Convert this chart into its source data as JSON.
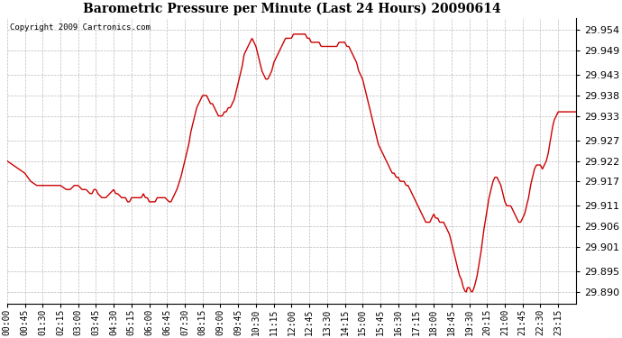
{
  "title": "Barometric Pressure per Minute (Last 24 Hours) 20090614",
  "copyright": "Copyright 2009 Cartronics.com",
  "line_color": "#cc0000",
  "background_color": "#ffffff",
  "grid_color": "#bbbbbb",
  "yticks": [
    29.89,
    29.895,
    29.901,
    29.906,
    29.911,
    29.917,
    29.922,
    29.927,
    29.933,
    29.938,
    29.943,
    29.949,
    29.954
  ],
  "ylim": [
    29.887,
    29.957
  ],
  "xlim": [
    0,
    1440
  ],
  "xtick_labels": [
    "00:00",
    "00:45",
    "01:30",
    "02:15",
    "03:00",
    "03:45",
    "04:30",
    "05:15",
    "06:00",
    "06:45",
    "07:30",
    "08:15",
    "09:00",
    "09:45",
    "10:30",
    "11:15",
    "12:00",
    "12:45",
    "13:30",
    "14:15",
    "15:00",
    "15:45",
    "16:30",
    "17:15",
    "18:00",
    "18:45",
    "19:30",
    "20:15",
    "21:00",
    "21:45",
    "22:30",
    "23:15"
  ],
  "waypoints": [
    [
      0,
      29.922
    ],
    [
      15,
      29.921
    ],
    [
      30,
      29.92
    ],
    [
      45,
      29.919
    ],
    [
      60,
      29.917
    ],
    [
      75,
      29.916
    ],
    [
      90,
      29.916
    ],
    [
      105,
      29.916
    ],
    [
      120,
      29.916
    ],
    [
      135,
      29.916
    ],
    [
      150,
      29.915
    ],
    [
      160,
      29.915
    ],
    [
      170,
      29.916
    ],
    [
      180,
      29.916
    ],
    [
      190,
      29.915
    ],
    [
      200,
      29.915
    ],
    [
      210,
      29.914
    ],
    [
      215,
      29.914
    ],
    [
      220,
      29.915
    ],
    [
      225,
      29.915
    ],
    [
      230,
      29.914
    ],
    [
      240,
      29.913
    ],
    [
      250,
      29.913
    ],
    [
      260,
      29.914
    ],
    [
      270,
      29.915
    ],
    [
      275,
      29.914
    ],
    [
      280,
      29.914
    ],
    [
      290,
      29.913
    ],
    [
      300,
      29.913
    ],
    [
      305,
      29.912
    ],
    [
      310,
      29.912
    ],
    [
      315,
      29.913
    ],
    [
      320,
      29.913
    ],
    [
      330,
      29.913
    ],
    [
      340,
      29.913
    ],
    [
      345,
      29.914
    ],
    [
      350,
      29.913
    ],
    [
      355,
      29.913
    ],
    [
      360,
      29.912
    ],
    [
      370,
      29.912
    ],
    [
      375,
      29.912
    ],
    [
      380,
      29.913
    ],
    [
      385,
      29.913
    ],
    [
      390,
      29.913
    ],
    [
      400,
      29.913
    ],
    [
      410,
      29.912
    ],
    [
      415,
      29.912
    ],
    [
      420,
      29.913
    ],
    [
      430,
      29.915
    ],
    [
      440,
      29.918
    ],
    [
      450,
      29.922
    ],
    [
      460,
      29.926
    ],
    [
      465,
      29.929
    ],
    [
      470,
      29.931
    ],
    [
      475,
      29.933
    ],
    [
      480,
      29.935
    ],
    [
      490,
      29.937
    ],
    [
      495,
      29.938
    ],
    [
      500,
      29.938
    ],
    [
      505,
      29.938
    ],
    [
      510,
      29.937
    ],
    [
      515,
      29.936
    ],
    [
      520,
      29.936
    ],
    [
      525,
      29.935
    ],
    [
      530,
      29.934
    ],
    [
      535,
      29.933
    ],
    [
      540,
      29.933
    ],
    [
      545,
      29.933
    ],
    [
      550,
      29.934
    ],
    [
      555,
      29.934
    ],
    [
      560,
      29.935
    ],
    [
      565,
      29.935
    ],
    [
      570,
      29.936
    ],
    [
      575,
      29.937
    ],
    [
      580,
      29.939
    ],
    [
      585,
      29.941
    ],
    [
      590,
      29.943
    ],
    [
      595,
      29.945
    ],
    [
      600,
      29.948
    ],
    [
      610,
      29.95
    ],
    [
      615,
      29.951
    ],
    [
      620,
      29.952
    ],
    [
      625,
      29.951
    ],
    [
      630,
      29.95
    ],
    [
      635,
      29.948
    ],
    [
      640,
      29.946
    ],
    [
      645,
      29.944
    ],
    [
      650,
      29.943
    ],
    [
      655,
      29.942
    ],
    [
      660,
      29.942
    ],
    [
      665,
      29.943
    ],
    [
      670,
      29.944
    ],
    [
      675,
      29.946
    ],
    [
      680,
      29.947
    ],
    [
      685,
      29.948
    ],
    [
      690,
      29.949
    ],
    [
      695,
      29.95
    ],
    [
      700,
      29.951
    ],
    [
      705,
      29.952
    ],
    [
      710,
      29.952
    ],
    [
      715,
      29.952
    ],
    [
      720,
      29.952
    ],
    [
      725,
      29.953
    ],
    [
      730,
      29.953
    ],
    [
      735,
      29.953
    ],
    [
      740,
      29.953
    ],
    [
      745,
      29.953
    ],
    [
      750,
      29.953
    ],
    [
      755,
      29.953
    ],
    [
      760,
      29.952
    ],
    [
      765,
      29.952
    ],
    [
      770,
      29.951
    ],
    [
      775,
      29.951
    ],
    [
      780,
      29.951
    ],
    [
      785,
      29.951
    ],
    [
      790,
      29.951
    ],
    [
      795,
      29.95
    ],
    [
      800,
      29.95
    ],
    [
      805,
      29.95
    ],
    [
      810,
      29.95
    ],
    [
      815,
      29.95
    ],
    [
      820,
      29.95
    ],
    [
      825,
      29.95
    ],
    [
      830,
      29.95
    ],
    [
      835,
      29.95
    ],
    [
      840,
      29.951
    ],
    [
      845,
      29.951
    ],
    [
      850,
      29.951
    ],
    [
      855,
      29.951
    ],
    [
      860,
      29.95
    ],
    [
      865,
      29.95
    ],
    [
      870,
      29.949
    ],
    [
      875,
      29.948
    ],
    [
      880,
      29.947
    ],
    [
      885,
      29.946
    ],
    [
      890,
      29.944
    ],
    [
      895,
      29.943
    ],
    [
      900,
      29.942
    ],
    [
      905,
      29.94
    ],
    [
      910,
      29.938
    ],
    [
      915,
      29.936
    ],
    [
      920,
      29.934
    ],
    [
      925,
      29.932
    ],
    [
      930,
      29.93
    ],
    [
      935,
      29.928
    ],
    [
      940,
      29.926
    ],
    [
      945,
      29.925
    ],
    [
      950,
      29.924
    ],
    [
      955,
      29.923
    ],
    [
      960,
      29.922
    ],
    [
      965,
      29.921
    ],
    [
      970,
      29.92
    ],
    [
      975,
      29.919
    ],
    [
      980,
      29.919
    ],
    [
      985,
      29.918
    ],
    [
      990,
      29.918
    ],
    [
      995,
      29.917
    ],
    [
      1000,
      29.917
    ],
    [
      1005,
      29.917
    ],
    [
      1010,
      29.916
    ],
    [
      1015,
      29.916
    ],
    [
      1020,
      29.915
    ],
    [
      1025,
      29.914
    ],
    [
      1030,
      29.913
    ],
    [
      1035,
      29.912
    ],
    [
      1040,
      29.911
    ],
    [
      1045,
      29.91
    ],
    [
      1050,
      29.909
    ],
    [
      1055,
      29.908
    ],
    [
      1060,
      29.907
    ],
    [
      1065,
      29.907
    ],
    [
      1070,
      29.907
    ],
    [
      1075,
      29.908
    ],
    [
      1080,
      29.909
    ],
    [
      1085,
      29.908
    ],
    [
      1090,
      29.908
    ],
    [
      1095,
      29.907
    ],
    [
      1100,
      29.907
    ],
    [
      1105,
      29.907
    ],
    [
      1110,
      29.906
    ],
    [
      1115,
      29.905
    ],
    [
      1120,
      29.904
    ],
    [
      1125,
      29.902
    ],
    [
      1130,
      29.9
    ],
    [
      1135,
      29.898
    ],
    [
      1140,
      29.896
    ],
    [
      1145,
      29.894
    ],
    [
      1150,
      29.893
    ],
    [
      1155,
      29.891
    ],
    [
      1160,
      29.89
    ],
    [
      1163,
      29.89
    ],
    [
      1165,
      29.891
    ],
    [
      1170,
      29.891
    ],
    [
      1175,
      29.89
    ],
    [
      1178,
      29.89
    ],
    [
      1182,
      29.891
    ],
    [
      1185,
      29.892
    ],
    [
      1190,
      29.894
    ],
    [
      1195,
      29.897
    ],
    [
      1200,
      29.9
    ],
    [
      1205,
      29.904
    ],
    [
      1210,
      29.907
    ],
    [
      1215,
      29.91
    ],
    [
      1220,
      29.913
    ],
    [
      1225,
      29.915
    ],
    [
      1230,
      29.917
    ],
    [
      1235,
      29.918
    ],
    [
      1240,
      29.918
    ],
    [
      1245,
      29.917
    ],
    [
      1250,
      29.916
    ],
    [
      1255,
      29.914
    ],
    [
      1260,
      29.912
    ],
    [
      1265,
      29.911
    ],
    [
      1270,
      29.911
    ],
    [
      1275,
      29.911
    ],
    [
      1280,
      29.91
    ],
    [
      1285,
      29.909
    ],
    [
      1290,
      29.908
    ],
    [
      1295,
      29.907
    ],
    [
      1300,
      29.907
    ],
    [
      1305,
      29.908
    ],
    [
      1310,
      29.909
    ],
    [
      1315,
      29.911
    ],
    [
      1320,
      29.913
    ],
    [
      1325,
      29.916
    ],
    [
      1330,
      29.918
    ],
    [
      1335,
      29.92
    ],
    [
      1340,
      29.921
    ],
    [
      1345,
      29.921
    ],
    [
      1350,
      29.921
    ],
    [
      1355,
      29.92
    ],
    [
      1360,
      29.921
    ],
    [
      1365,
      29.922
    ],
    [
      1370,
      29.924
    ],
    [
      1375,
      29.927
    ],
    [
      1380,
      29.93
    ],
    [
      1385,
      29.932
    ],
    [
      1390,
      29.933
    ],
    [
      1395,
      29.934
    ],
    [
      1400,
      29.934
    ],
    [
      1410,
      29.934
    ],
    [
      1420,
      29.934
    ],
    [
      1430,
      29.934
    ],
    [
      1440,
      29.934
    ]
  ]
}
